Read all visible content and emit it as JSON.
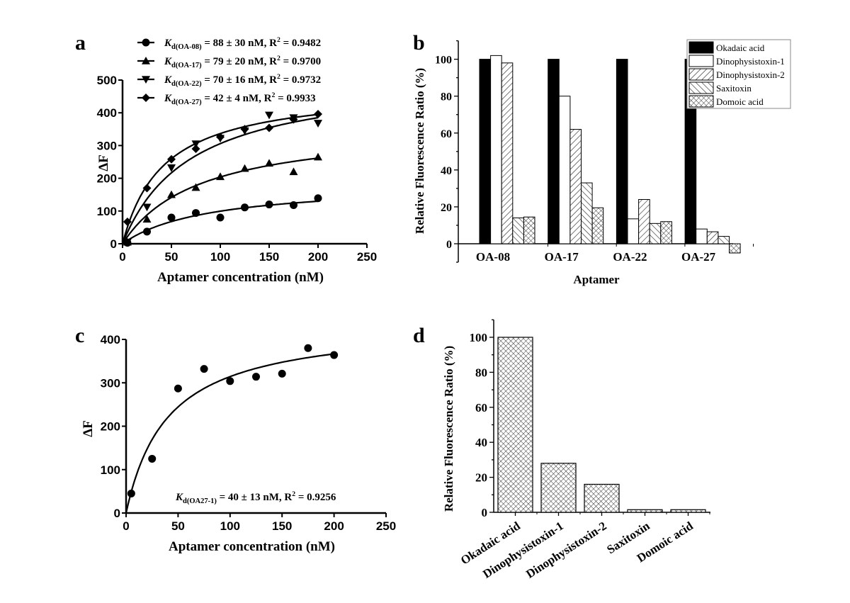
{
  "chart_data": [
    {
      "panel": "a",
      "type": "scatter",
      "xlabel": "Aptamer concentration (nM)",
      "ylabel": "ΔF",
      "xlim": [
        0,
        250
      ],
      "ylim": [
        0,
        500
      ],
      "xticks": [
        0,
        50,
        100,
        150,
        200,
        250
      ],
      "yticks": [
        0,
        100,
        200,
        300,
        400,
        500
      ],
      "legend_position": "top",
      "x": [
        5,
        25,
        50,
        75,
        100,
        125,
        150,
        175,
        200
      ],
      "series": [
        {
          "marker": "circle",
          "kd_sub": "d(OA-08)",
          "label_rest": " = 88 ± 30 nM, R",
          "r2": " = 0.9482",
          "kd": 88,
          "values": [
            3,
            37,
            80,
            94,
            80,
            111,
            120,
            118,
            139
          ]
        },
        {
          "marker": "triangle-up",
          "kd_sub": "d(OA-17)",
          "label_rest": " = 79 ± 20 nM, R",
          "r2": " = 0.9700",
          "kd": 79,
          "values": [
            5,
            75,
            150,
            172,
            205,
            230,
            246,
            220,
            265
          ]
        },
        {
          "marker": "triangle-down",
          "kd_sub": "d(OA-22)",
          "label_rest": " = 70 ± 16 nM, R",
          "r2": " = 0.9732",
          "kd": 70,
          "values": [
            5,
            112,
            232,
            305,
            322,
            345,
            393,
            385,
            368
          ]
        },
        {
          "marker": "diamond",
          "kd_sub": "d(OA-27)",
          "label_rest": " = 42 ± 4 nM, R",
          "r2": " = 0.9933",
          "kd": 42,
          "values": [
            67,
            170,
            258,
            290,
            326,
            350,
            354,
            380,
            396
          ]
        }
      ],
      "fit_bmax": [
        187,
        365,
        520,
        478
      ]
    },
    {
      "panel": "b",
      "type": "bar",
      "xlabel": "Aptamer",
      "ylabel": "Relative Fluorescence Ratio (%)",
      "ylim": [
        -10,
        110
      ],
      "yticks": [
        0,
        20,
        40,
        60,
        80,
        100
      ],
      "categories": [
        "OA-08",
        "OA-17",
        "OA-22",
        "OA-27"
      ],
      "legend_position": "top-right",
      "series": [
        {
          "name": "Okadaic acid",
          "fill": "solid-black",
          "values": [
            100,
            100,
            100,
            100
          ]
        },
        {
          "name": "Dinophysistoxin-1",
          "fill": "white",
          "values": [
            102,
            80,
            13.5,
            8
          ]
        },
        {
          "name": "Dinophysistoxin-2",
          "fill": "diagonal-hatch",
          "values": [
            98,
            62,
            24,
            6.5
          ]
        },
        {
          "name": "Saxitoxin",
          "fill": "back-diagonal-hatch",
          "values": [
            14,
            33,
            11,
            4
          ]
        },
        {
          "name": "Domoic acid",
          "fill": "crosshatch",
          "values": [
            14.5,
            19.5,
            12,
            -5
          ]
        }
      ]
    },
    {
      "panel": "c",
      "type": "scatter",
      "xlabel": "Aptamer concentration (nM)",
      "ylabel": "ΔF",
      "xlim": [
        0,
        250
      ],
      "ylim": [
        0,
        400
      ],
      "xticks": [
        0,
        50,
        100,
        150,
        200,
        250
      ],
      "yticks": [
        0,
        100,
        200,
        300,
        400
      ],
      "x": [
        5,
        25,
        50,
        75,
        100,
        125,
        150,
        175,
        200
      ],
      "values": [
        45,
        125,
        287,
        332,
        304,
        314,
        321,
        380,
        364
      ],
      "annotation": {
        "kd_sub": "d(OA27-1)",
        "label_rest": " = 40 ± 13 nM, R",
        "r2": " = 0.9256"
      },
      "kd": 40,
      "fit_bmax": 440
    },
    {
      "panel": "d",
      "type": "bar",
      "xlabel": "",
      "ylabel": "Relative Fluorescence Ratio (%)",
      "ylim": [
        0,
        110
      ],
      "yticks": [
        0,
        20,
        40,
        60,
        80,
        100
      ],
      "categories": [
        "Okadaic acid",
        "Dinophysistoxin-1",
        "Dinophysistoxin-2",
        "Saxitoxin",
        "Domoic acid"
      ],
      "values": [
        100,
        28,
        16,
        1.5,
        1.5
      ],
      "fill": "crosshatch"
    }
  ],
  "kd_symbol": "K",
  "r2_sup": "2"
}
